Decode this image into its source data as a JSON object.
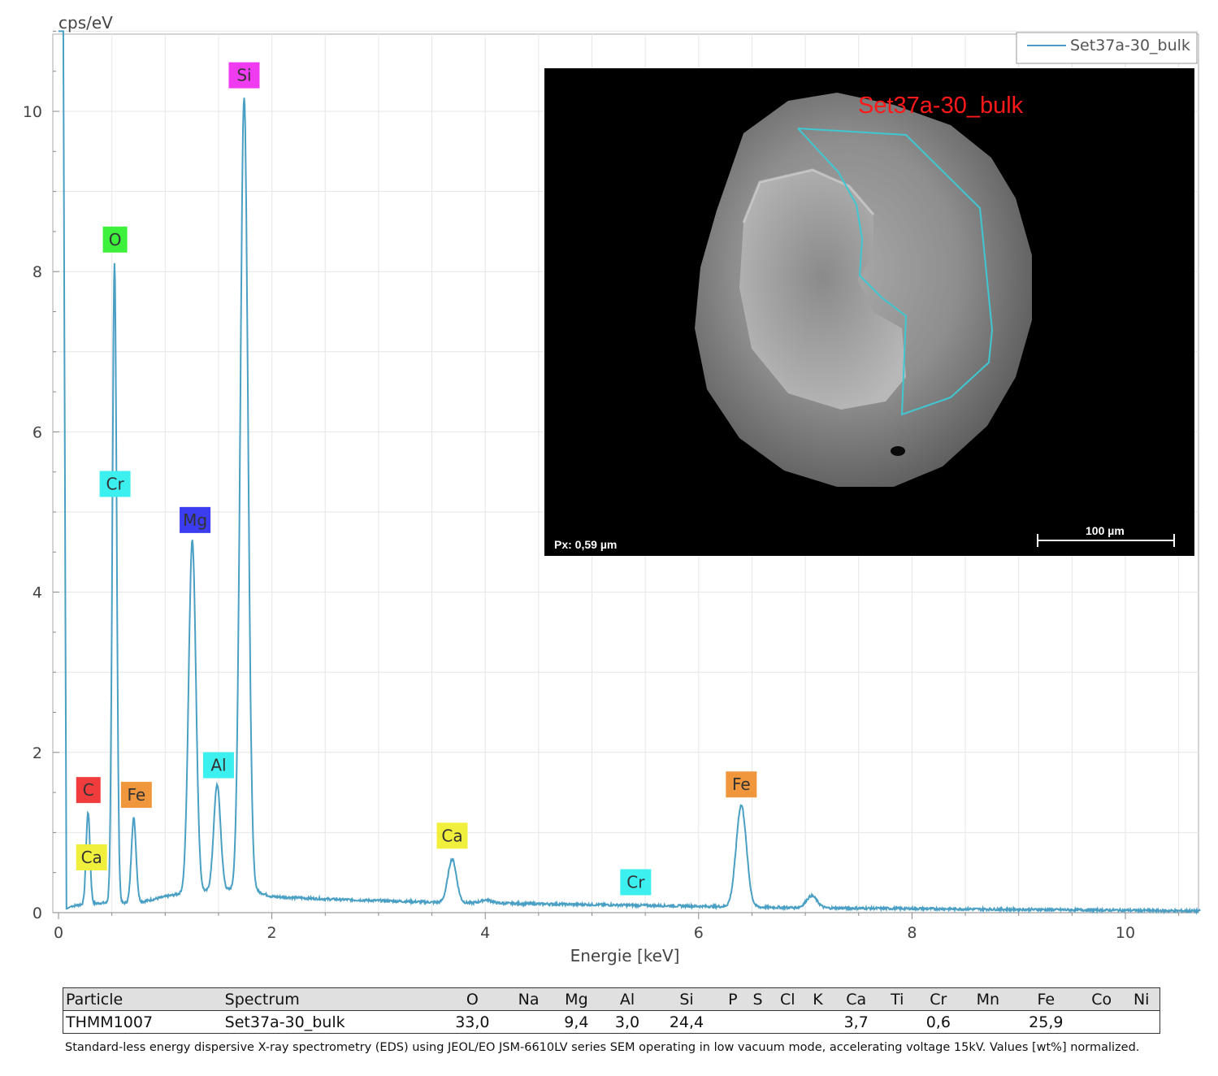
{
  "chart_data": {
    "type": "line",
    "ylabel": "cps/eV",
    "xlabel": "Energie [keV]",
    "xlim": [
      0,
      10.7
    ],
    "ylim": [
      0,
      11
    ],
    "xticks": [
      0,
      2,
      4,
      6,
      8,
      10
    ],
    "yticks": [
      0,
      2,
      4,
      6,
      8,
      10
    ],
    "grid": true,
    "legend_position": "top-right",
    "series": [
      {
        "name": "Set37a-30_bulk",
        "color": "#4a9fc4",
        "background": [
          [
            0.08,
            0.05
          ],
          [
            0.12,
            0.08
          ],
          [
            0.2,
            0.1
          ],
          [
            0.4,
            0.12
          ],
          [
            0.6,
            0.12
          ],
          [
            0.8,
            0.14
          ],
          [
            1.0,
            0.2
          ],
          [
            1.15,
            0.24
          ],
          [
            1.3,
            0.26
          ],
          [
            1.5,
            0.28
          ],
          [
            1.7,
            0.29
          ],
          [
            1.85,
            0.27
          ],
          [
            2.0,
            0.2
          ],
          [
            2.5,
            0.17
          ],
          [
            3.0,
            0.15
          ],
          [
            3.5,
            0.13
          ],
          [
            4.0,
            0.12
          ],
          [
            4.5,
            0.11
          ],
          [
            5.0,
            0.1
          ],
          [
            5.5,
            0.09
          ],
          [
            6.0,
            0.08
          ],
          [
            6.5,
            0.07
          ],
          [
            7.0,
            0.06
          ],
          [
            8.0,
            0.05
          ],
          [
            9.0,
            0.04
          ],
          [
            10.0,
            0.03
          ],
          [
            10.7,
            0.02
          ]
        ],
        "peaks": [
          {
            "energy": 0.277,
            "height": 1.15,
            "sigma": 0.018
          },
          {
            "energy": 0.525,
            "height": 8.0,
            "sigma": 0.02
          },
          {
            "energy": 0.705,
            "height": 1.05,
            "sigma": 0.022
          },
          {
            "energy": 1.254,
            "height": 4.4,
            "sigma": 0.034
          },
          {
            "energy": 1.487,
            "height": 1.32,
            "sigma": 0.032
          },
          {
            "energy": 1.74,
            "height": 9.9,
            "sigma": 0.036
          },
          {
            "energy": 3.69,
            "height": 0.54,
            "sigma": 0.04
          },
          {
            "energy": 4.01,
            "height": 0.04,
            "sigma": 0.05
          },
          {
            "energy": 6.4,
            "height": 1.27,
            "sigma": 0.048
          },
          {
            "energy": 7.06,
            "height": 0.15,
            "sigma": 0.05
          }
        ]
      }
    ],
    "element_labels": [
      {
        "text": "Si",
        "energy": 1.74,
        "y": 10.45,
        "color": "#f03cf0"
      },
      {
        "text": "O",
        "energy": 0.53,
        "y": 8.4,
        "color": "#3cf03c"
      },
      {
        "text": "Cr",
        "energy": 0.53,
        "y": 5.35,
        "color": "#3cf0f0"
      },
      {
        "text": "Mg",
        "energy": 1.28,
        "y": 4.9,
        "color": "#3c3cf0"
      },
      {
        "text": "Al",
        "energy": 1.5,
        "y": 1.84,
        "color": "#3cf0f0"
      },
      {
        "text": "C",
        "energy": 0.28,
        "y": 1.53,
        "color": "#f03c3c"
      },
      {
        "text": "Fe",
        "energy": 0.73,
        "y": 1.47,
        "color": "#f0963c"
      },
      {
        "text": "Ca",
        "energy": 0.31,
        "y": 0.69,
        "color": "#f0f03c"
      },
      {
        "text": "Ca",
        "energy": 3.69,
        "y": 0.96,
        "color": "#f0f03c"
      },
      {
        "text": "Cr",
        "energy": 5.41,
        "y": 0.38,
        "color": "#3cf0f0"
      },
      {
        "text": "Fe",
        "energy": 6.4,
        "y": 1.6,
        "color": "#f0963c"
      }
    ]
  },
  "sem_image": {
    "roi_label": "Set37a-30_bulk",
    "pixel_size": "Px: 0,59 µm",
    "scale_label": "100 µm"
  },
  "results_table": {
    "headers": [
      "Particle",
      "Spectrum",
      "O",
      "Na",
      "Mg",
      "Al",
      "Si",
      "P",
      "S",
      "Cl",
      "K",
      "Ca",
      "Ti",
      "Cr",
      "Mn",
      "Fe",
      "Co",
      "Ni"
    ],
    "rows": [
      [
        "THMM1007",
        "Set37a-30_bulk",
        "33,0",
        "",
        "9,4",
        "3,0",
        "24,4",
        "",
        "",
        "",
        "",
        "3,7",
        "",
        "0,6",
        "",
        "25,9",
        "",
        ""
      ]
    ]
  },
  "footnote": "Standard-less energy dispersive X-ray spectrometry (EDS) using JEOL/EO JSM-6610LV series SEM operating in low vacuum mode, accelerating voltage 15kV. Values [wt%] normalized."
}
